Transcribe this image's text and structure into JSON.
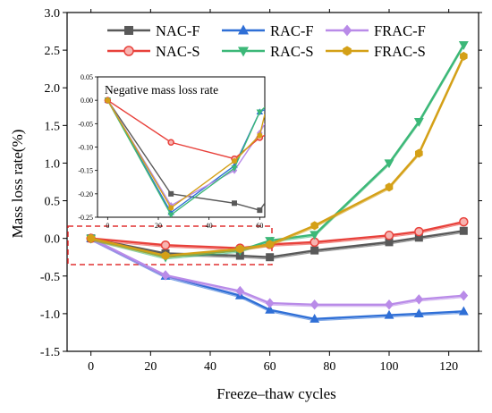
{
  "chart_data": [
    {
      "type": "line",
      "xlabel": "Freeze–thaw cycles",
      "ylabel": "Mass loss rate(%)",
      "xlim": [
        -8,
        130
      ],
      "ylim": [
        -1.5,
        3.0
      ],
      "xticks": [
        0,
        20,
        40,
        60,
        80,
        100,
        120
      ],
      "yticks": [
        -1.5,
        -1.0,
        -0.5,
        0.0,
        0.5,
        1.0,
        1.5,
        2.0,
        2.5,
        3.0
      ],
      "ytick_labels": [
        "-1.5",
        "-1.0",
        "-0.5",
        "0.0",
        "0.5",
        "1.0",
        "1.5",
        "2.0",
        "2.5",
        "3.0"
      ],
      "legend_position": "top",
      "grid": false,
      "series": [
        {
          "name": "NAC-F",
          "color": "#595959",
          "marker": "square",
          "x": [
            0,
            25,
            50,
            60,
            75,
            100,
            110,
            125
          ],
          "values": [
            0.0,
            -0.2,
            -0.23,
            -0.25,
            -0.16,
            -0.05,
            0.01,
            0.1
          ]
        },
        {
          "name": "RAC-F",
          "color": "#2f6fd6",
          "marker": "triangle",
          "x": [
            0,
            25,
            50,
            60,
            75,
            100,
            110,
            125
          ],
          "values": [
            0.0,
            -0.5,
            -0.76,
            -0.95,
            -1.07,
            -1.02,
            -1.0,
            -0.97
          ]
        },
        {
          "name": "FRAC-F",
          "color": "#b98be8",
          "marker": "diamond",
          "x": [
            0,
            25,
            50,
            60,
            75,
            100,
            110,
            125
          ],
          "values": [
            0.0,
            -0.49,
            -0.7,
            -0.86,
            -0.88,
            -0.88,
            -0.81,
            -0.76
          ]
        },
        {
          "name": "NAC-S",
          "color": "#e8413b",
          "marker": "circle",
          "x": [
            0,
            25,
            50,
            60,
            75,
            100,
            110,
            125
          ],
          "values": [
            0.0,
            -0.09,
            -0.13,
            -0.08,
            -0.05,
            0.04,
            0.09,
            0.22
          ]
        },
        {
          "name": "RAC-S",
          "color": "#3cb878",
          "marker": "tri-down",
          "x": [
            0,
            25,
            50,
            60,
            75,
            100,
            110,
            125
          ],
          "values": [
            0.0,
            -0.25,
            -0.16,
            -0.03,
            0.05,
            1.0,
            1.55,
            2.57
          ]
        },
        {
          "name": "FRAC-S",
          "color": "#d4a017",
          "marker": "hexagon",
          "x": [
            0,
            25,
            50,
            60,
            75,
            100,
            110,
            125
          ],
          "values": [
            0.0,
            -0.23,
            -0.14,
            -0.08,
            0.17,
            0.68,
            1.13,
            2.42
          ]
        }
      ]
    },
    {
      "type": "line",
      "title": "Negative mass loss rate",
      "xlim": [
        -4,
        62
      ],
      "ylim": [
        -0.25,
        0.05
      ],
      "xticks": [
        0,
        20,
        40,
        60
      ],
      "yticks": [
        0.05,
        0.0,
        -0.05,
        -0.1,
        -0.15,
        -0.2,
        -0.25
      ],
      "ytick_labels": [
        "0.05",
        "0.00",
        "-0.05",
        "-0.10",
        "-0.15",
        "-0.20",
        "-0.25"
      ],
      "series": [
        {
          "name": "NAC-F",
          "color": "#595959",
          "marker": "square",
          "x": [
            0,
            25,
            50,
            60,
            62
          ],
          "values": [
            0.0,
            -0.2,
            -0.22,
            -0.235,
            -0.22
          ]
        },
        {
          "name": "RAC-F",
          "color": "#2f6fd6",
          "marker": "triangle",
          "x": [
            0,
            25,
            50,
            60,
            62
          ],
          "values": [
            0.0,
            -0.24,
            -0.14,
            -0.025,
            -0.02
          ]
        },
        {
          "name": "FRAC-F",
          "color": "#b98be8",
          "marker": "diamond",
          "x": [
            0,
            25,
            50,
            60,
            62
          ],
          "values": [
            0.0,
            -0.225,
            -0.15,
            -0.07,
            -0.05
          ]
        },
        {
          "name": "NAC-S",
          "color": "#e8413b",
          "marker": "circle",
          "x": [
            0,
            25,
            50,
            60,
            62
          ],
          "values": [
            0.0,
            -0.09,
            -0.125,
            -0.08,
            -0.075
          ]
        },
        {
          "name": "RAC-S",
          "color": "#3cb878",
          "marker": "tri-down",
          "x": [
            0,
            25,
            50,
            60,
            62
          ],
          "values": [
            0.0,
            -0.245,
            -0.145,
            -0.025,
            -0.015
          ]
        },
        {
          "name": "FRAC-S",
          "color": "#d4a017",
          "marker": "hexagon",
          "x": [
            0,
            25,
            50,
            60,
            62
          ],
          "values": [
            0.0,
            -0.23,
            -0.13,
            -0.075,
            -0.03
          ]
        }
      ]
    }
  ]
}
